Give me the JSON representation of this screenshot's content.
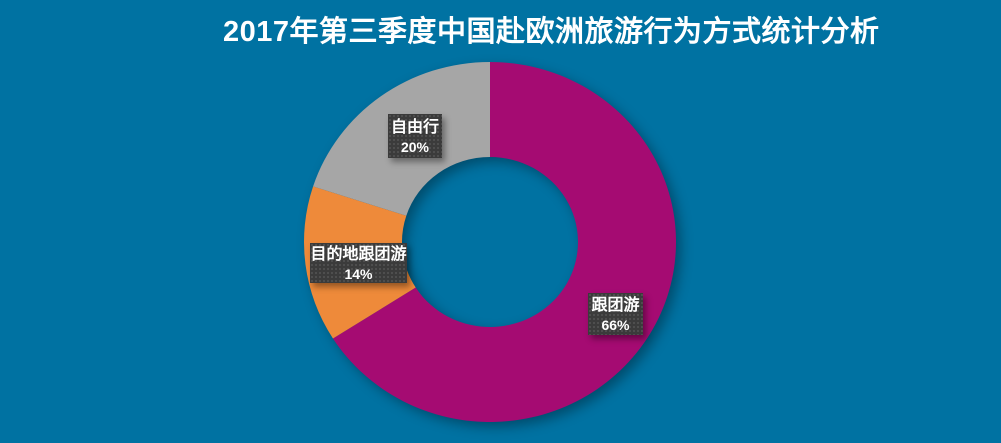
{
  "page": {
    "background_color": "#0072A2"
  },
  "chart_data": {
    "type": "pie",
    "subtype": "donut",
    "title": "2017年第三季度中国赴欧洲旅游行为方式统计分析",
    "title_color": "#FFFFFF",
    "direction": "clockwise",
    "start_angle_deg": 0,
    "inner_radius_ratio": 0.47,
    "legend": "none",
    "label_style": "dark textured callout boxes with white bold text",
    "label_box_color": "#3B3B3B",
    "slices": [
      {
        "label": "跟团游",
        "value": 66,
        "value_label": "66%",
        "color": "#A50B72"
      },
      {
        "label": "目的地跟团游",
        "value": 14,
        "value_label": "14%",
        "color": "#EE8A3A"
      },
      {
        "label": "自由行",
        "value": 20,
        "value_label": "20%",
        "color": "#A6A6A6"
      }
    ]
  }
}
